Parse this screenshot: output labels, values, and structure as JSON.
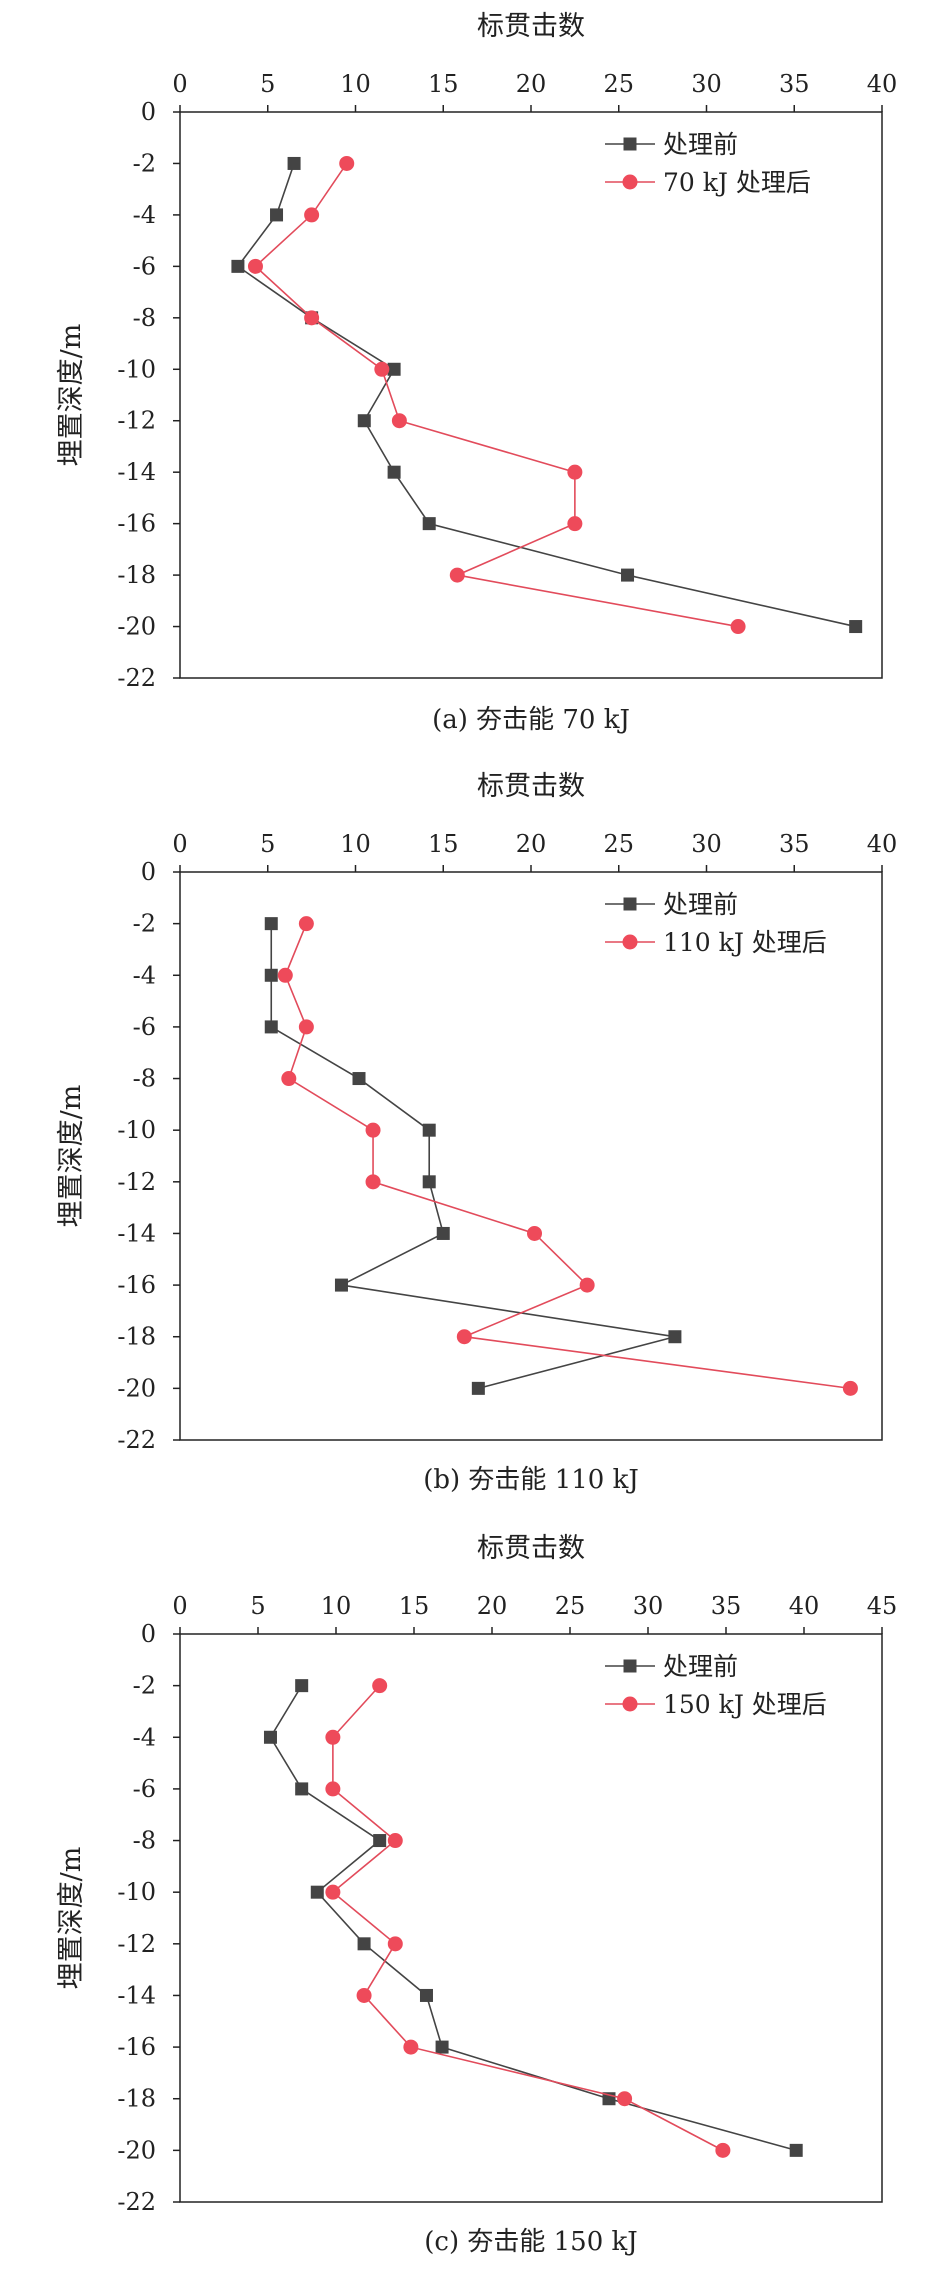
{
  "colors": {
    "before": "#444444",
    "after": "#e24b5b",
    "after_marker": "#ee4a5a",
    "axis": "#222222"
  },
  "chart_data": [
    {
      "type": "line",
      "xlabel": "标贯击数",
      "ylabel": "埋置深度/m",
      "x_axis_position": "top",
      "xlim": [
        0,
        40
      ],
      "xticks": [
        0,
        5,
        10,
        15,
        20,
        25,
        30,
        35,
        40
      ],
      "ylim": [
        -22,
        0
      ],
      "yticks": [
        0,
        -2,
        -4,
        -6,
        -8,
        -10,
        -12,
        -14,
        -16,
        -18,
        -20,
        -22
      ],
      "grid": false,
      "legend_position": "top-right",
      "caption": "(a) 夯击能 70 kJ",
      "series": [
        {
          "name": "处理前",
          "marker": "square",
          "points": [
            {
              "x": 6.5,
              "y": -2
            },
            {
              "x": 5.5,
              "y": -4
            },
            {
              "x": 3.3,
              "y": -6
            },
            {
              "x": 7.5,
              "y": -8
            },
            {
              "x": 12.2,
              "y": -10
            },
            {
              "x": 10.5,
              "y": -12
            },
            {
              "x": 12.2,
              "y": -14
            },
            {
              "x": 14.2,
              "y": -16
            },
            {
              "x": 25.5,
              "y": -18
            },
            {
              "x": 38.5,
              "y": -20
            }
          ]
        },
        {
          "name": "70 kJ 处理后",
          "marker": "circle",
          "points": [
            {
              "x": 9.5,
              "y": -2
            },
            {
              "x": 7.5,
              "y": -4
            },
            {
              "x": 4.3,
              "y": -6
            },
            {
              "x": 7.5,
              "y": -8
            },
            {
              "x": 11.5,
              "y": -10
            },
            {
              "x": 12.5,
              "y": -12
            },
            {
              "x": 22.5,
              "y": -14
            },
            {
              "x": 22.5,
              "y": -16
            },
            {
              "x": 15.8,
              "y": -18
            },
            {
              "x": 31.8,
              "y": -20
            }
          ]
        }
      ]
    },
    {
      "type": "line",
      "xlabel": "标贯击数",
      "ylabel": "埋置深度/m",
      "x_axis_position": "top",
      "xlim": [
        0,
        40
      ],
      "xticks": [
        0,
        5,
        10,
        15,
        20,
        25,
        30,
        35,
        40
      ],
      "ylim": [
        -22,
        0
      ],
      "yticks": [
        0,
        -2,
        -4,
        -6,
        -8,
        -10,
        -12,
        -14,
        -16,
        -18,
        -20,
        -22
      ],
      "grid": false,
      "legend_position": "top-right",
      "caption": "(b) 夯击能 110 kJ",
      "series": [
        {
          "name": "处理前",
          "marker": "square",
          "points": [
            {
              "x": 5.2,
              "y": -2
            },
            {
              "x": 5.2,
              "y": -4
            },
            {
              "x": 5.2,
              "y": -6
            },
            {
              "x": 10.2,
              "y": -8
            },
            {
              "x": 14.2,
              "y": -10
            },
            {
              "x": 14.2,
              "y": -12
            },
            {
              "x": 15.0,
              "y": -14
            },
            {
              "x": 9.2,
              "y": -16
            },
            {
              "x": 28.2,
              "y": -18
            },
            {
              "x": 17.0,
              "y": -20
            }
          ]
        },
        {
          "name": "110 kJ 处理后",
          "marker": "circle",
          "points": [
            {
              "x": 7.2,
              "y": -2
            },
            {
              "x": 6.0,
              "y": -4
            },
            {
              "x": 7.2,
              "y": -6
            },
            {
              "x": 6.2,
              "y": -8
            },
            {
              "x": 11.0,
              "y": -10
            },
            {
              "x": 11.0,
              "y": -12
            },
            {
              "x": 20.2,
              "y": -14
            },
            {
              "x": 23.2,
              "y": -16
            },
            {
              "x": 16.2,
              "y": -18
            },
            {
              "x": 38.2,
              "y": -20
            }
          ]
        }
      ]
    },
    {
      "type": "line",
      "xlabel": "标贯击数",
      "ylabel": "埋置深度/m",
      "x_axis_position": "top",
      "xlim": [
        0,
        45
      ],
      "xticks": [
        0,
        5,
        10,
        15,
        20,
        25,
        30,
        35,
        40,
        45
      ],
      "ylim": [
        -22,
        0
      ],
      "yticks": [
        0,
        -2,
        -4,
        -6,
        -8,
        -10,
        -12,
        -14,
        -16,
        -18,
        -20,
        -22
      ],
      "grid": false,
      "legend_position": "top-right",
      "caption": "(c) 夯击能 150 kJ",
      "series": [
        {
          "name": "处理前",
          "marker": "square",
          "points": [
            {
              "x": 7.8,
              "y": -2
            },
            {
              "x": 5.8,
              "y": -4
            },
            {
              "x": 7.8,
              "y": -6
            },
            {
              "x": 12.8,
              "y": -8
            },
            {
              "x": 8.8,
              "y": -10
            },
            {
              "x": 11.8,
              "y": -12
            },
            {
              "x": 15.8,
              "y": -14
            },
            {
              "x": 16.8,
              "y": -16
            },
            {
              "x": 27.5,
              "y": -18
            },
            {
              "x": 39.5,
              "y": -20
            }
          ]
        },
        {
          "name": "150 kJ 处理后",
          "marker": "circle",
          "points": [
            {
              "x": 12.8,
              "y": -2
            },
            {
              "x": 9.8,
              "y": -4
            },
            {
              "x": 9.8,
              "y": -6
            },
            {
              "x": 13.8,
              "y": -8
            },
            {
              "x": 9.8,
              "y": -10
            },
            {
              "x": 13.8,
              "y": -12
            },
            {
              "x": 11.8,
              "y": -14
            },
            {
              "x": 14.8,
              "y": -16
            },
            {
              "x": 28.5,
              "y": -18
            },
            {
              "x": 34.8,
              "y": -20
            }
          ]
        }
      ]
    }
  ]
}
